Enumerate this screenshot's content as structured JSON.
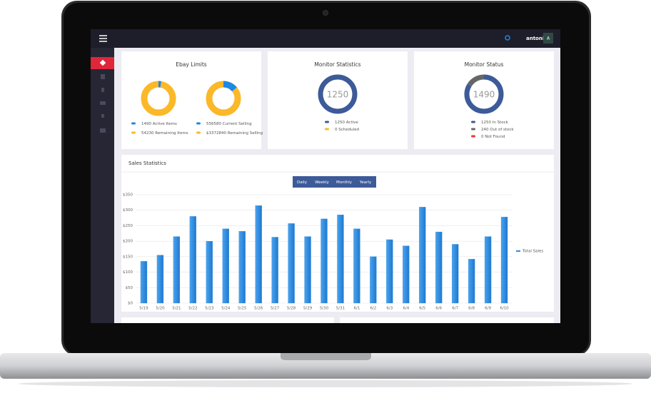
{
  "header": {
    "user": "antonis",
    "avatar": "A"
  },
  "panels": [
    {
      "title": "Ebay Limits",
      "donuts": [
        {
          "segments": [
            {
              "value": 1490,
              "label": "Active Items",
              "color": "#1e88e5"
            },
            {
              "value": 54230,
              "label": "Remaining Items",
              "color": "#fbb829"
            }
          ]
        },
        {
          "segments": [
            {
              "value": 556580,
              "label": "Current Selling",
              "color": "#1e88e5"
            },
            {
              "value": 3372840,
              "value_label": "$3372840",
              "label": "Remaining Selling",
              "color": "#fbb829"
            }
          ]
        }
      ]
    },
    {
      "title": "Monitor Statistics",
      "donuts": [
        {
          "center": 1250,
          "segments": [
            {
              "value": 1250,
              "label": "Active",
              "color": "#3d5a99"
            },
            {
              "value": 0,
              "label": "Scheduled",
              "color": "#fbb829"
            }
          ]
        }
      ]
    },
    {
      "title": "Monitor Status",
      "donuts": [
        {
          "center": 1490,
          "segments": [
            {
              "value": 1250,
              "label": "In Stock",
              "color": "#3d5a99"
            },
            {
              "value": 240,
              "label": "Out of stock",
              "color": "#666666"
            },
            {
              "value": 0,
              "label": "Not Found",
              "color": "#e53935"
            }
          ]
        }
      ]
    }
  ],
  "range_buttons": [
    "Daily",
    "Weekly",
    "Monthly",
    "Yearly"
  ],
  "chart_data": {
    "type": "bar",
    "title": "Sales Statistics",
    "categories": [
      "5/19",
      "5/20",
      "5/21",
      "5/22",
      "5/23",
      "5/24",
      "5/25",
      "5/26",
      "5/27",
      "5/28",
      "5/29",
      "5/30",
      "5/31",
      "6/1",
      "6/2",
      "6/3",
      "6/4",
      "6/5",
      "6/6",
      "6/7",
      "6/8",
      "6/9",
      "6/10"
    ],
    "series": [
      {
        "name": "Total Sales",
        "color": "#2f8fe0",
        "values": [
          135,
          155,
          215,
          280,
          200,
          240,
          232,
          315,
          213,
          257,
          215,
          272,
          285,
          240,
          150,
          205,
          185,
          310,
          230,
          190,
          142,
          215,
          278
        ]
      }
    ],
    "ylim": [
      0,
      350
    ],
    "yticks": [
      {
        "value": 0,
        "label": "$0"
      },
      {
        "value": 50,
        "label": "$50"
      },
      {
        "value": 100,
        "label": "$100"
      },
      {
        "value": 150,
        "label": "$150"
      },
      {
        "value": 200,
        "label": "$200"
      },
      {
        "value": 250,
        "label": "$250"
      },
      {
        "value": 300,
        "label": "$300"
      },
      {
        "value": 350,
        "label": "$350"
      }
    ],
    "grid": true,
    "legend": "right"
  }
}
